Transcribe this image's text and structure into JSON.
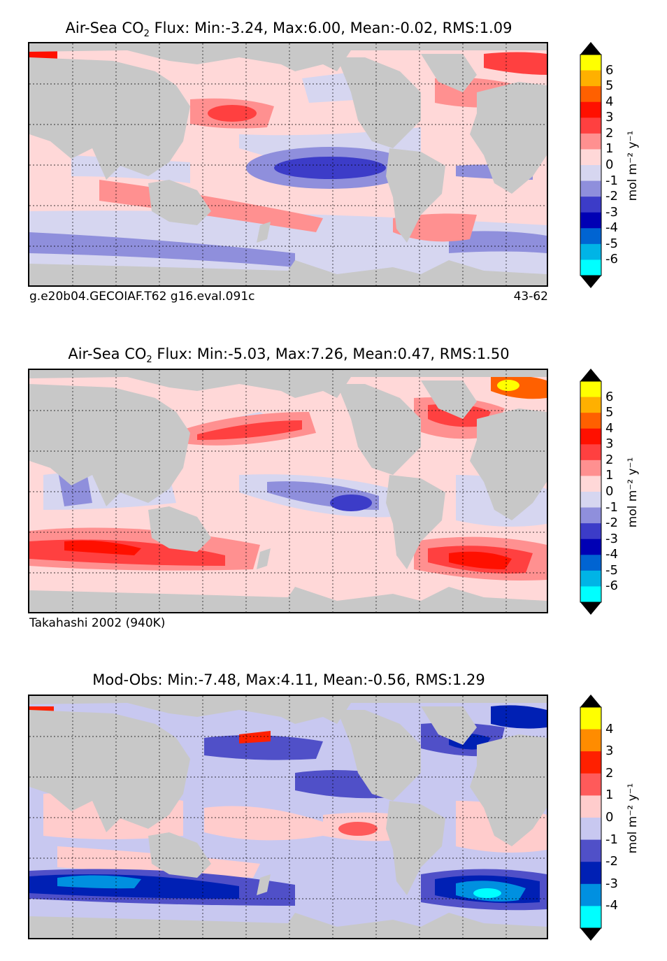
{
  "panels": [
    {
      "title_pre": "Air-Sea CO",
      "title_sub": "2",
      "title_post": "Flux: Min:-3.24, Max:6.00, Mean:-0.02, RMS:1.09",
      "caption_left": "g.e20b04.GECOIAF.T62 g16.eval.091c",
      "caption_right": "43-62"
    },
    {
      "title_pre": "Air-Sea CO",
      "title_sub": "2",
      "title_post": "Flux: Min:-5.03, Max:7.26, Mean:0.47, RMS:1.50",
      "caption_left": "Takahashi 2002 (940K)",
      "caption_right": ""
    },
    {
      "title_pre": "",
      "title_sub": "",
      "title_post": "Mod-Obs: Min:-7.48, Max:4.11, Mean:-0.56, RMS:1.29",
      "caption_left": "",
      "caption_right": ""
    }
  ],
  "colorbars": [
    {
      "unit": "mol m⁻² y⁻¹",
      "ticks": [
        "6",
        "5",
        "4",
        "3",
        "2",
        "1",
        "0",
        "-1",
        "-2",
        "-3",
        "-4",
        "-5",
        "-6"
      ],
      "colors": [
        "#ffff00",
        "#ffb000",
        "#ff6000",
        "#ff1000",
        "#ff4040",
        "#ff9090",
        "#ffd8d8",
        "#d6d6f0",
        "#8f8fdc",
        "#3c3cc8",
        "#0000b4",
        "#0064d2",
        "#00b4e6",
        "#00ffff"
      ]
    },
    {
      "unit": "mol m⁻² y⁻¹",
      "ticks": [
        "6",
        "5",
        "4",
        "3",
        "2",
        "1",
        "0",
        "-1",
        "-2",
        "-3",
        "-4",
        "-5",
        "-6"
      ],
      "colors": [
        "#ffff00",
        "#ffb000",
        "#ff6000",
        "#ff1000",
        "#ff4040",
        "#ff9090",
        "#ffd8d8",
        "#d6d6f0",
        "#8f8fdc",
        "#3c3cc8",
        "#0000b4",
        "#0064d2",
        "#00b4e6",
        "#00ffff"
      ]
    },
    {
      "unit": "mol m⁻² y⁻¹",
      "ticks": [
        "4",
        "3",
        "2",
        "1",
        "0",
        "-1",
        "-2",
        "-3",
        "-4"
      ],
      "colors": [
        "#ffff00",
        "#ff8c00",
        "#ff2000",
        "#ff5a5a",
        "#ffcccc",
        "#c8c8f0",
        "#5050c8",
        "#0020b4",
        "#0090e0",
        "#00ffff"
      ]
    }
  ],
  "map_colors": {
    "land": "#c8c8c8",
    "ice": "#ffffff",
    "grid": "#000000"
  }
}
